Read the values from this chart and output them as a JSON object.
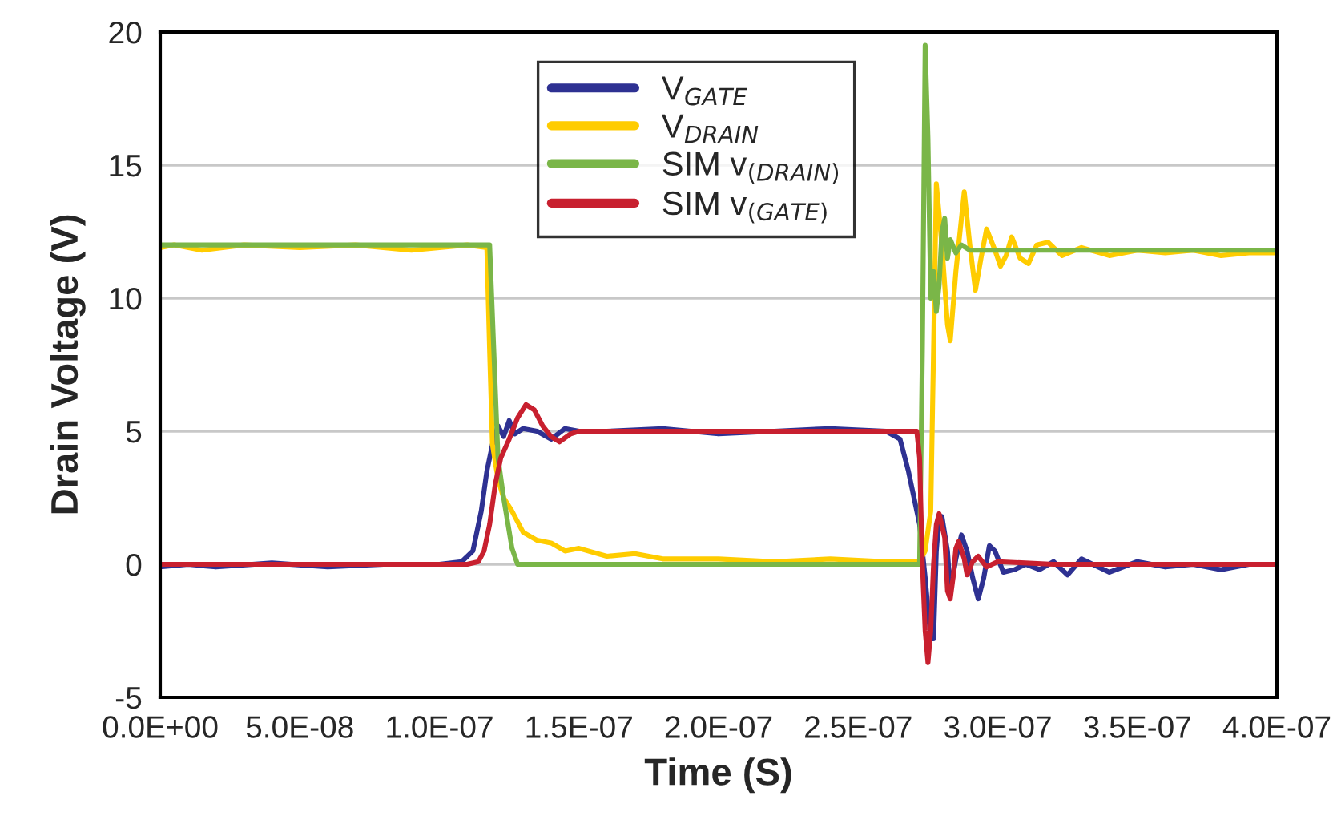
{
  "chart_data": {
    "type": "line",
    "xlabel": "Time (S)",
    "ylabel": "Drain Voltage (V)",
    "xlim": [
      0,
      4e-07
    ],
    "ylim": [
      -5,
      20
    ],
    "xticks": [
      {
        "value": 0,
        "label": "0.0E+00"
      },
      {
        "value": 5e-08,
        "label": "5.0E-08"
      },
      {
        "value": 1e-07,
        "label": "1.0E-07"
      },
      {
        "value": 1.5e-07,
        "label": "1.5E-07"
      },
      {
        "value": 2e-07,
        "label": "2.0E-07"
      },
      {
        "value": 2.5e-07,
        "label": "2.5E-07"
      },
      {
        "value": 3e-07,
        "label": "3.0E-07"
      },
      {
        "value": 3.5e-07,
        "label": "3.5E-07"
      },
      {
        "value": 4e-07,
        "label": "4.0E-07"
      }
    ],
    "yticks": [
      -5,
      0,
      5,
      10,
      15,
      20
    ],
    "grid": "y",
    "legend": "top",
    "marker": "none",
    "line_style": "solid",
    "series": [
      {
        "name": "V$_{GATE}$",
        "color": "#2e3192",
        "x": [
          0.0,
          1e-08,
          2e-08,
          4e-08,
          6e-08,
          8e-08,
          1e-07,
          1.08e-07,
          1.12e-07,
          1.15e-07,
          1.17e-07,
          1.19e-07,
          1.21e-07,
          1.23e-07,
          1.25e-07,
          1.27e-07,
          1.3e-07,
          1.35e-07,
          1.4e-07,
          1.45e-07,
          1.5e-07,
          1.6e-07,
          1.8e-07,
          2e-07,
          2.2e-07,
          2.4e-07,
          2.6e-07,
          2.65e-07,
          2.68e-07,
          2.7e-07,
          2.72e-07,
          2.74e-07,
          2.76e-07,
          2.77e-07,
          2.78e-07,
          2.79e-07,
          2.8e-07,
          2.82e-07,
          2.83e-07,
          2.85e-07,
          2.87e-07,
          2.89e-07,
          2.91e-07,
          2.93e-07,
          2.95e-07,
          2.97e-07,
          2.99e-07,
          3.02e-07,
          3.06e-07,
          3.1e-07,
          3.15e-07,
          3.2e-07,
          3.25e-07,
          3.3e-07,
          3.4e-07,
          3.5e-07,
          3.6e-07,
          3.7e-07,
          3.8e-07,
          3.9e-07,
          4e-07
        ],
        "values": [
          -0.1,
          0,
          -0.1,
          0.05,
          -0.1,
          0,
          0,
          0.1,
          0.5,
          2,
          3.5,
          4.5,
          5.2,
          4.8,
          5.4,
          4.9,
          5.1,
          5.0,
          4.7,
          5.1,
          5.0,
          5.0,
          5.1,
          4.9,
          5.0,
          5.1,
          5.0,
          4.7,
          3.5,
          2.5,
          1.5,
          -0.5,
          -2.8,
          -2.8,
          0.5,
          1.8,
          1.8,
          0.5,
          -1.0,
          0.2,
          1.1,
          0.5,
          -0.5,
          -1.3,
          -0.5,
          0.7,
          0.5,
          -0.3,
          -0.2,
          0.0,
          -0.2,
          0.1,
          -0.4,
          0.2,
          -0.3,
          0.1,
          -0.1,
          0.0,
          -0.2,
          0.0,
          0.0
        ]
      },
      {
        "name": "V$_{DRAIN}$",
        "color": "#ffcc00",
        "x": [
          0.0,
          5e-09,
          1.5e-08,
          3e-08,
          5e-08,
          7e-08,
          9e-08,
          1.1e-07,
          1.17e-07,
          1.18e-07,
          1.19e-07,
          1.21e-07,
          1.23e-07,
          1.26e-07,
          1.3e-07,
          1.35e-07,
          1.4e-07,
          1.45e-07,
          1.5e-07,
          1.6e-07,
          1.7e-07,
          1.8e-07,
          2e-07,
          2.2e-07,
          2.4e-07,
          2.6e-07,
          2.72e-07,
          2.74e-07,
          2.76e-07,
          2.77e-07,
          2.78e-07,
          2.8e-07,
          2.82e-07,
          2.83e-07,
          2.85e-07,
          2.88e-07,
          2.9e-07,
          2.92e-07,
          2.94e-07,
          2.96e-07,
          2.99e-07,
          3.01e-07,
          3.03e-07,
          3.05e-07,
          3.08e-07,
          3.11e-07,
          3.14e-07,
          3.18e-07,
          3.23e-07,
          3.3e-07,
          3.4e-07,
          3.5e-07,
          3.6e-07,
          3.7e-07,
          3.8e-07,
          3.9e-07,
          4e-07
        ],
        "values": [
          11.9,
          12.0,
          11.8,
          12.0,
          11.9,
          12.0,
          11.8,
          12.0,
          11.9,
          8,
          4.5,
          3.2,
          2.5,
          2.0,
          1.2,
          0.9,
          0.8,
          0.5,
          0.6,
          0.3,
          0.4,
          0.2,
          0.2,
          0.1,
          0.2,
          0.1,
          0.1,
          0.5,
          2,
          8,
          14.3,
          12,
          9,
          8.4,
          11,
          14,
          12,
          10.3,
          11.5,
          12.6,
          11.8,
          11.2,
          11.6,
          12.3,
          11.5,
          11.3,
          12.0,
          12.1,
          11.6,
          11.9,
          11.6,
          11.8,
          11.7,
          11.8,
          11.6,
          11.7,
          11.7
        ]
      },
      {
        "name": "SIM v$_{(DRAIN)}$",
        "color": "#7ab648",
        "x": [
          0.0,
          1.18e-07,
          1.195e-07,
          1.21e-07,
          1.23e-07,
          1.26e-07,
          1.28e-07,
          2.72e-07,
          2.73e-07,
          2.74e-07,
          2.75e-07,
          2.76e-07,
          2.77e-07,
          2.78e-07,
          2.79e-07,
          2.8e-07,
          2.81e-07,
          2.82e-07,
          2.83e-07,
          2.85e-07,
          2.87e-07,
          2.9e-07,
          4e-07
        ],
        "values": [
          12,
          12,
          8,
          4,
          2.5,
          0.6,
          0,
          0,
          8,
          19.5,
          16,
          10,
          11,
          9.5,
          10.5,
          12.5,
          13,
          11.5,
          12.2,
          11.7,
          12,
          11.8,
          11.8
        ]
      },
      {
        "name": "SIM v$_{(GATE)}$",
        "color": "#c8202f",
        "x": [
          0.0,
          1.1e-07,
          1.14e-07,
          1.16e-07,
          1.18e-07,
          1.2e-07,
          1.22e-07,
          1.25e-07,
          1.28e-07,
          1.31e-07,
          1.34e-07,
          1.37e-07,
          1.4e-07,
          1.43e-07,
          1.47e-07,
          1.5e-07,
          2e-07,
          2.6e-07,
          2.71e-07,
          2.72e-07,
          2.73e-07,
          2.74e-07,
          2.75e-07,
          2.76e-07,
          2.77e-07,
          2.78e-07,
          2.79e-07,
          2.81e-07,
          2.82e-07,
          2.83e-07,
          2.84e-07,
          2.85e-07,
          2.86e-07,
          2.88e-07,
          2.89e-07,
          2.91e-07,
          2.93e-07,
          2.96e-07,
          3e-07,
          3.2e-07,
          4e-07
        ],
        "values": [
          0,
          0,
          0.1,
          0.5,
          1.5,
          3,
          4,
          4.7,
          5.5,
          6.0,
          5.8,
          5.2,
          4.8,
          4.6,
          4.9,
          5.0,
          5.0,
          5.0,
          5.0,
          4,
          0,
          -2.5,
          -3.7,
          -2.5,
          0,
          1.5,
          1.9,
          1.0,
          -1,
          -1.3,
          -0.5,
          0.6,
          0.85,
          0.2,
          -0.4,
          0.1,
          0.3,
          -0.1,
          0.1,
          0.0,
          0.0
        ]
      }
    ]
  }
}
